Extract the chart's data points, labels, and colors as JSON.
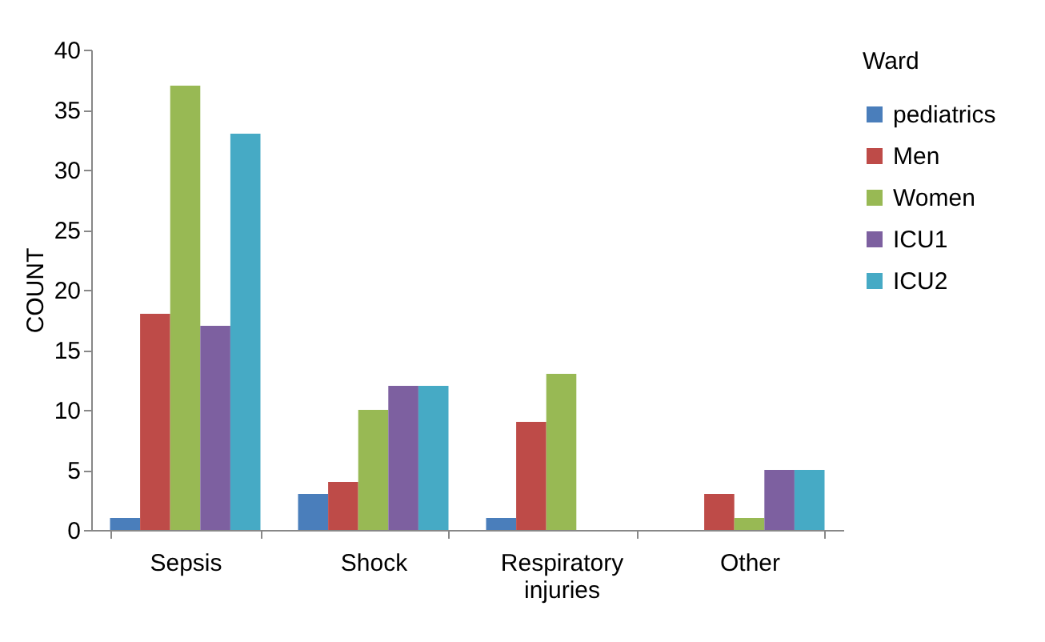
{
  "chart_data": {
    "type": "bar",
    "ylabel": "COUNT",
    "legend_title": "Ward",
    "categories": [
      "Sepsis",
      "Shock",
      "Respiratory injuries",
      "Other"
    ],
    "series": [
      {
        "name": "pediatrics",
        "color": "#4a7ebb",
        "values": [
          1,
          3,
          1,
          0
        ]
      },
      {
        "name": "Men",
        "color": "#be4b48",
        "values": [
          18,
          4,
          9,
          3
        ]
      },
      {
        "name": "Women",
        "color": "#98b954",
        "values": [
          37,
          10,
          13,
          1
        ]
      },
      {
        "name": "ICU1",
        "color": "#7d60a0",
        "values": [
          17,
          12,
          0,
          5
        ]
      },
      {
        "name": "ICU2",
        "color": "#46aac5",
        "values": [
          33,
          12,
          0,
          5
        ]
      }
    ],
    "ylim": [
      0,
      40
    ],
    "yticks": [
      0,
      5,
      10,
      15,
      20,
      25,
      30,
      35,
      40
    ],
    "grid": false,
    "legend": "right"
  }
}
